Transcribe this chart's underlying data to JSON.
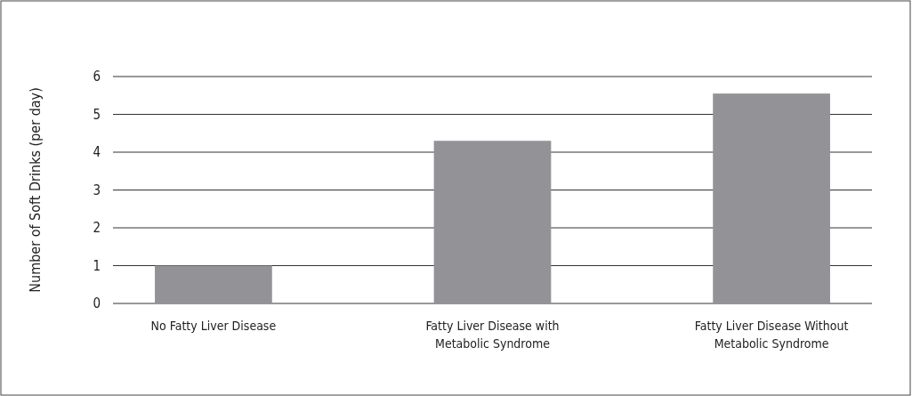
{
  "chart_data": {
    "type": "bar",
    "ylabel": "Number of Soft Drinks (per day)",
    "categories": [
      "No Fatty Liver Disease",
      "Fatty Liver Disease with Metabolic Syndrome",
      "Fatty Liver Disease Without Metabolic Syndrome"
    ],
    "values": [
      1.0,
      4.3,
      5.55
    ],
    "color": "#939397",
    "ylim": [
      0,
      6
    ],
    "yticks": [
      0,
      1,
      2,
      3,
      4,
      5,
      6
    ],
    "grid": "y"
  }
}
